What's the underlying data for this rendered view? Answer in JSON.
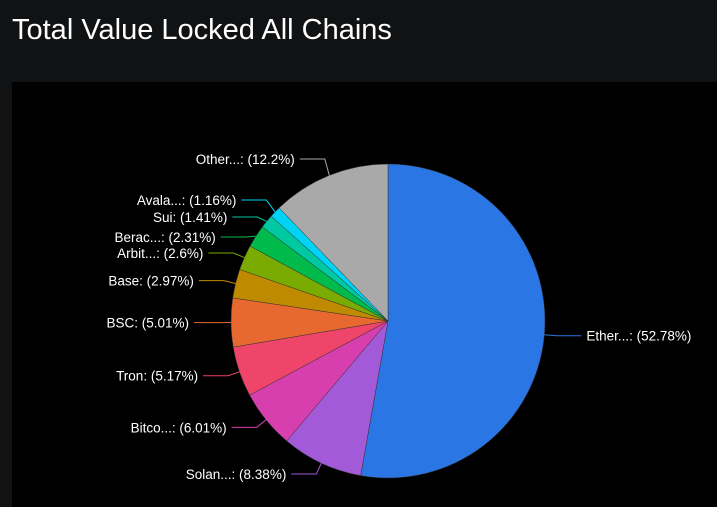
{
  "chart_data": {
    "type": "pie",
    "title": "Total Value Locked All Chains",
    "start": "top",
    "direction": "clockwise",
    "slices": [
      {
        "label": "Ether...: (52.78%)",
        "value": 52.78,
        "color": "#2a76e4"
      },
      {
        "label": "Solan...: (8.38%)",
        "value": 8.38,
        "color": "#a35ad8"
      },
      {
        "label": "Bitco...: (6.01%)",
        "value": 6.01,
        "color": "#d83fae"
      },
      {
        "label": "Tron: (5.17%)",
        "value": 5.17,
        "color": "#f0456a"
      },
      {
        "label": "BSC: (5.01%)",
        "value": 5.01,
        "color": "#e8692f"
      },
      {
        "label": "Base: (2.97%)",
        "value": 2.97,
        "color": "#bf8a00"
      },
      {
        "label": "Arbit...: (2.6%)",
        "value": 2.6,
        "color": "#7aab00"
      },
      {
        "label": "Berac...: (2.31%)",
        "value": 2.31,
        "color": "#00ba4c"
      },
      {
        "label": "Sui: (1.41%)",
        "value": 1.41,
        "color": "#00c9a2"
      },
      {
        "label": "Avala...: (1.16%)",
        "value": 1.16,
        "color": "#00d3f5"
      },
      {
        "label": "Other...: (12.2%)",
        "value": 12.2,
        "color": "#a9a9a9"
      }
    ]
  }
}
